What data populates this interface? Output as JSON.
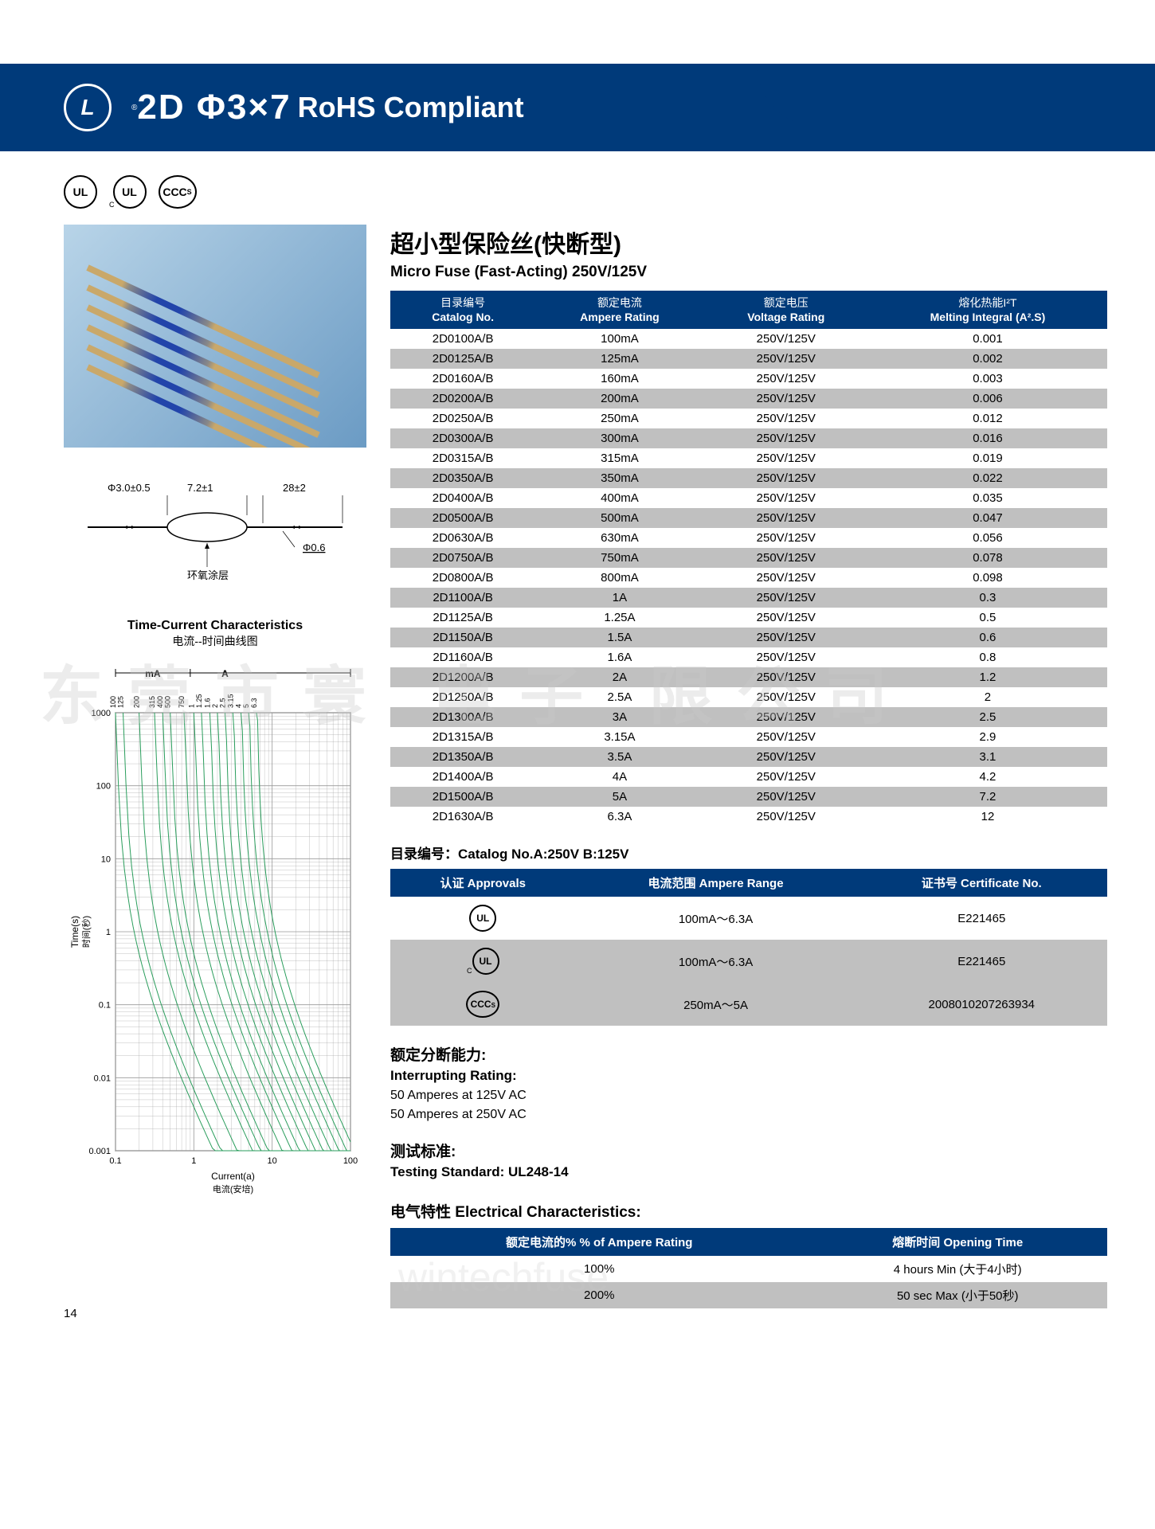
{
  "header": {
    "title_main": "2D Φ3×7",
    "title_sub": "RoHS Compliant",
    "logo_letter": "L",
    "reg_mark": "®"
  },
  "certs": {
    "ul": "UL",
    "cul_prefix": "C",
    "cul": "UL",
    "ccc": "CCC",
    "ccc_suffix": "S"
  },
  "section": {
    "title_cn": "超小型保险丝(快断型)",
    "title_en": "Micro Fuse (Fast-Acting) 250V/125V"
  },
  "spec_headers": {
    "catalog_cn": "目录编号",
    "catalog_en": "Catalog No.",
    "ampere_cn": "额定电流",
    "ampere_en": "Ampere Rating",
    "voltage_cn": "额定电压",
    "voltage_en": "Voltage Rating",
    "i2t_cn": "熔化热能I²T",
    "i2t_en": "Melting Integral (A².S)"
  },
  "specs": [
    {
      "cat": "2D0100A/B",
      "amp": "100mA",
      "volt": "250V/125V",
      "i2t": "0.001"
    },
    {
      "cat": "2D0125A/B",
      "amp": "125mA",
      "volt": "250V/125V",
      "i2t": "0.002"
    },
    {
      "cat": "2D0160A/B",
      "amp": "160mA",
      "volt": "250V/125V",
      "i2t": "0.003"
    },
    {
      "cat": "2D0200A/B",
      "amp": "200mA",
      "volt": "250V/125V",
      "i2t": "0.006"
    },
    {
      "cat": "2D0250A/B",
      "amp": "250mA",
      "volt": "250V/125V",
      "i2t": "0.012"
    },
    {
      "cat": "2D0300A/B",
      "amp": "300mA",
      "volt": "250V/125V",
      "i2t": "0.016"
    },
    {
      "cat": "2D0315A/B",
      "amp": "315mA",
      "volt": "250V/125V",
      "i2t": "0.019"
    },
    {
      "cat": "2D0350A/B",
      "amp": "350mA",
      "volt": "250V/125V",
      "i2t": "0.022"
    },
    {
      "cat": "2D0400A/B",
      "amp": "400mA",
      "volt": "250V/125V",
      "i2t": "0.035"
    },
    {
      "cat": "2D0500A/B",
      "amp": "500mA",
      "volt": "250V/125V",
      "i2t": "0.047"
    },
    {
      "cat": "2D0630A/B",
      "amp": "630mA",
      "volt": "250V/125V",
      "i2t": "0.056"
    },
    {
      "cat": "2D0750A/B",
      "amp": "750mA",
      "volt": "250V/125V",
      "i2t": "0.078"
    },
    {
      "cat": "2D0800A/B",
      "amp": "800mA",
      "volt": "250V/125V",
      "i2t": "0.098"
    },
    {
      "cat": "2D1100A/B",
      "amp": "1A",
      "volt": "250V/125V",
      "i2t": "0.3"
    },
    {
      "cat": "2D1125A/B",
      "amp": "1.25A",
      "volt": "250V/125V",
      "i2t": "0.5"
    },
    {
      "cat": "2D1150A/B",
      "amp": "1.5A",
      "volt": "250V/125V",
      "i2t": "0.6"
    },
    {
      "cat": "2D1160A/B",
      "amp": "1.6A",
      "volt": "250V/125V",
      "i2t": "0.8"
    },
    {
      "cat": "2D1200A/B",
      "amp": "2A",
      "volt": "250V/125V",
      "i2t": "1.2"
    },
    {
      "cat": "2D1250A/B",
      "amp": "2.5A",
      "volt": "250V/125V",
      "i2t": "2"
    },
    {
      "cat": "2D1300A/B",
      "amp": "3A",
      "volt": "250V/125V",
      "i2t": "2.5"
    },
    {
      "cat": "2D1315A/B",
      "amp": "3.15A",
      "volt": "250V/125V",
      "i2t": "2.9"
    },
    {
      "cat": "2D1350A/B",
      "amp": "3.5A",
      "volt": "250V/125V",
      "i2t": "3.1"
    },
    {
      "cat": "2D1400A/B",
      "amp": "4A",
      "volt": "250V/125V",
      "i2t": "4.2"
    },
    {
      "cat": "2D1500A/B",
      "amp": "5A",
      "volt": "250V/125V",
      "i2t": "7.2"
    },
    {
      "cat": "2D1630A/B",
      "amp": "6.3A",
      "volt": "250V/125V",
      "i2t": "12"
    }
  ],
  "catalog_note": "目录编号：Catalog No.A:250V B:125V",
  "approvals_headers": {
    "approvals": "认证 Approvals",
    "ampere": "电流范围 Ampere Range",
    "cert": "证书号 Certificate No."
  },
  "approvals": [
    {
      "mark": "UL",
      "range": "100mA～6.3A",
      "cert": "E221465"
    },
    {
      "mark": "cUL",
      "range": "100mA～6.3A",
      "cert": "E221465"
    },
    {
      "mark": "CCC",
      "range": "250mA～5A",
      "cert": "2008010207263934"
    }
  ],
  "interrupting": {
    "title_cn": "额定分断能力:",
    "title_en": "Interrupting Rating:",
    "line1": "50 Amperes at 125V AC",
    "line2": "50 Amperes at 250V AC"
  },
  "testing": {
    "title_cn": "测试标准:",
    "title_en": "Testing Standard:  UL248-14"
  },
  "electrical": {
    "title": "电气特性 Electrical Characteristics:",
    "header_pct": "额定电流的%  % of  Ampere Rating",
    "header_time": "熔断时间 Opening Time",
    "rows": [
      {
        "pct": "100%",
        "time": "4 hours Min (大于4小时)"
      },
      {
        "pct": "200%",
        "time": "50 sec Max (小于50秒)"
      }
    ]
  },
  "chart": {
    "title": "Time-Current Characteristics",
    "subtitle": "电流--时间曲线图",
    "ylabel": "Time(s)\n时间(秒)",
    "xlabel": "Current(a)\n电流(安培)",
    "unit_ma": "mA",
    "unit_a": "A",
    "x_range": [
      0.1,
      100
    ],
    "y_range": [
      0.001,
      1000
    ],
    "y_ticks": [
      "0.001",
      "0.01",
      "0.1",
      "1",
      "10",
      "100",
      "1000"
    ],
    "x_ticks": [
      "0.1",
      "1",
      "10",
      "100"
    ],
    "top_labels": [
      "100",
      "125",
      "200",
      "315",
      "400",
      "500",
      "750",
      "1",
      "1.25",
      "1.6",
      "2",
      "2.5",
      "3.15",
      "4",
      "5",
      "6.3"
    ],
    "curve_color": "#2a9d5c",
    "grid_color": "#999999",
    "curves_x_at_y1000": [
      0.1,
      0.125,
      0.2,
      0.315,
      0.4,
      0.5,
      0.75,
      1,
      1.25,
      1.6,
      2,
      2.5,
      3.15,
      4,
      5,
      6.3
    ]
  },
  "dimensions": {
    "dia": "Φ3.0±0.5",
    "body": "7.2±1",
    "lead": "28±2",
    "wire_dia": "Φ0.6",
    "coating": "环氧涂层"
  },
  "page_num": "14",
  "watermark": "东莞市寰  电子  限公司",
  "watermark2": "wintechfuse"
}
